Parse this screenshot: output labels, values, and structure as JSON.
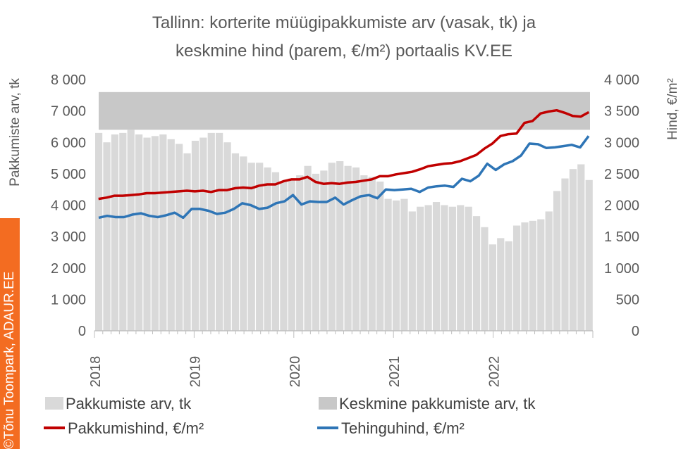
{
  "chart_data": {
    "type": "bar+line",
    "title_lines": [
      "Tallinn: korterite müügipakkumiste arv (vasak, tk) ja",
      "keskmine hind (parem, €/m²) portaalis KV.EE"
    ],
    "ylabel_left": "Pakkumiste arv, tk",
    "ylabel_right": "Hind, €/m²",
    "ylim_left": [
      0,
      8000
    ],
    "ylim_right": [
      0,
      4000
    ],
    "yticks_left": [
      "0",
      "1 000",
      "2 000",
      "3 000",
      "4 000",
      "5 000",
      "6 000",
      "7 000",
      "8 000"
    ],
    "yticks_right": [
      "0",
      "500",
      "1 000",
      "1 500",
      "2 000",
      "2 500",
      "3 000",
      "3 500",
      "4 000"
    ],
    "xticks": [
      "2018",
      "2019",
      "2020",
      "2021",
      "2022"
    ],
    "x_start": "2018-01",
    "x_end": "2022-12",
    "band": {
      "name": "Keskmine pakkumiste arv, tk",
      "low": 6400,
      "high": 7600,
      "color": "#c8c8c8"
    },
    "series": [
      {
        "name": "Pakkumiste arv, tk",
        "kind": "bar",
        "axis": "left",
        "color": "#d9d9d9",
        "values": [
          6300,
          6000,
          6250,
          6300,
          6400,
          6250,
          6150,
          6200,
          6250,
          6100,
          5950,
          5650,
          6050,
          6150,
          6300,
          6300,
          6000,
          5650,
          5550,
          5350,
          5350,
          5200,
          5050,
          4750,
          4850,
          4950,
          5250,
          5000,
          5100,
          5350,
          5400,
          5250,
          5200,
          4950,
          4900,
          4750,
          4200,
          4150,
          4200,
          3800,
          3950,
          4000,
          4100,
          4000,
          3950,
          4000,
          3950,
          3650,
          3300,
          2750,
          2950,
          2850,
          3350,
          3450,
          3500,
          3550,
          3800,
          4450,
          4850,
          5150,
          5300,
          4800
        ]
      },
      {
        "name": "Pakkumishind, €/m²",
        "kind": "line",
        "axis": "right",
        "color": "#c00000",
        "values": [
          2100,
          2120,
          2150,
          2150,
          2160,
          2170,
          2190,
          2190,
          2200,
          2210,
          2220,
          2230,
          2220,
          2230,
          2210,
          2240,
          2240,
          2270,
          2280,
          2270,
          2310,
          2330,
          2330,
          2380,
          2410,
          2410,
          2450,
          2370,
          2340,
          2350,
          2340,
          2360,
          2370,
          2390,
          2410,
          2460,
          2460,
          2490,
          2510,
          2530,
          2570,
          2620,
          2640,
          2660,
          2670,
          2700,
          2750,
          2800,
          2900,
          2980,
          3100,
          3130,
          3140,
          3310,
          3340,
          3460,
          3490,
          3510,
          3470,
          3420,
          3410,
          3480
        ]
      },
      {
        "name": "Tehinguhind, €/m²",
        "kind": "line",
        "axis": "right",
        "color": "#2e75b6",
        "values": [
          1800,
          1830,
          1810,
          1810,
          1850,
          1870,
          1830,
          1810,
          1840,
          1880,
          1800,
          1940,
          1940,
          1910,
          1860,
          1880,
          1940,
          2030,
          2000,
          1940,
          1960,
          2030,
          2060,
          2160,
          2010,
          2060,
          2050,
          2050,
          2120,
          2010,
          2080,
          2140,
          2160,
          2110,
          2250,
          2240,
          2250,
          2260,
          2210,
          2280,
          2300,
          2310,
          2290,
          2420,
          2380,
          2470,
          2660,
          2560,
          2650,
          2700,
          2790,
          2980,
          2970,
          2910,
          2920,
          2940,
          2960,
          2920,
          3100
        ]
      }
    ],
    "legend": [
      "Pakkumiste arv, tk",
      "Keskmine pakkumiste arv, tk",
      "Pakkumishind, €/m²",
      "Tehinguhind, €/m²"
    ],
    "credit": "©Tõnu Toompark, ADAUR.EE"
  }
}
